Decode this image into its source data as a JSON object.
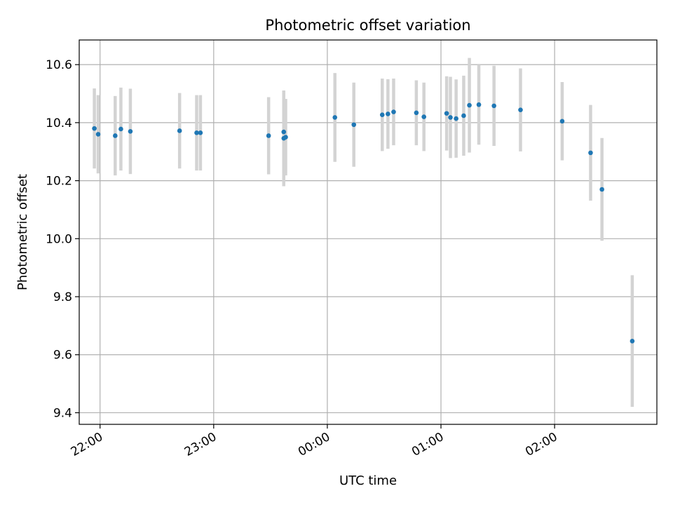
{
  "chart_data": {
    "type": "scatter",
    "title": "Photometric offset variation",
    "xlabel": "UTC time",
    "ylabel": "Photometric offset",
    "x_ticks": [
      "22:00",
      "23:00",
      "00:00",
      "01:00",
      "02:00"
    ],
    "y_ticks": [
      "9.4",
      "9.6",
      "9.8",
      "10.0",
      "10.2",
      "10.4",
      "10.6"
    ],
    "ylim": [
      9.36,
      10.685
    ],
    "xlim": [
      "21:49",
      "02:54"
    ],
    "grid": true,
    "colors": {
      "point": "#1f77b4",
      "errorbar": "#d3d3d3",
      "grid": "#b0b0b0"
    },
    "series": [
      {
        "x": [
          "21:57",
          "21:59",
          "22:08",
          "22:11",
          "22:16",
          "22:42",
          "22:51",
          "22:53",
          "23:29",
          "23:37",
          "23:37",
          "23:38",
          "00:04",
          "00:14",
          "00:29",
          "00:32",
          "00:35",
          "00:47",
          "00:51",
          "01:03",
          "01:05",
          "01:08",
          "01:12",
          "01:15",
          "01:20",
          "01:28",
          "01:42",
          "02:04",
          "02:19",
          "02:25",
          "02:41"
        ],
        "y": [
          10.38,
          10.36,
          10.355,
          10.378,
          10.37,
          10.372,
          10.365,
          10.365,
          10.355,
          10.346,
          10.368,
          10.35,
          10.418,
          10.393,
          10.427,
          10.43,
          10.437,
          10.434,
          10.42,
          10.432,
          10.418,
          10.414,
          10.424,
          10.46,
          10.462,
          10.458,
          10.444,
          10.405,
          10.296,
          10.17,
          9.647
        ],
        "yerr": [
          0.138,
          0.135,
          0.137,
          0.143,
          0.147,
          0.13,
          0.13,
          0.13,
          0.133,
          0.165,
          0.142,
          0.132,
          0.153,
          0.145,
          0.125,
          0.12,
          0.115,
          0.112,
          0.118,
          0.128,
          0.14,
          0.135,
          0.138,
          0.163,
          0.138,
          0.138,
          0.143,
          0.135,
          0.165,
          0.177,
          0.227
        ]
      }
    ]
  }
}
